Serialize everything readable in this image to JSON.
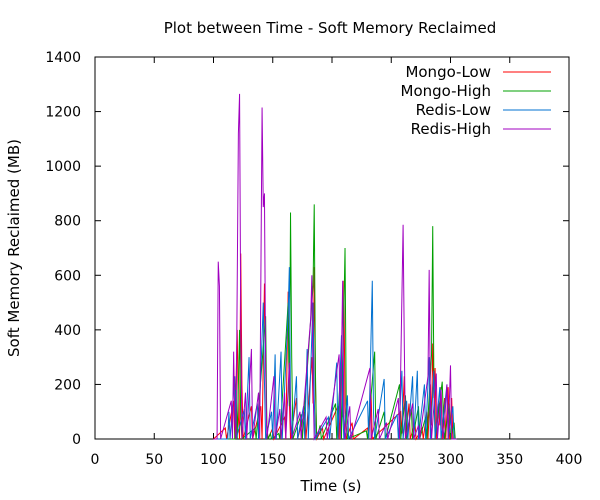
{
  "chart_data": {
    "type": "line",
    "title": "Plot between Time - Soft Memory Reclaimed",
    "xlabel": "Time (s)",
    "ylabel": "Soft Memory Reclaimed (MB)",
    "xlim": [
      0,
      400
    ],
    "ylim": [
      0,
      1400
    ],
    "xticks": [
      0,
      50,
      100,
      150,
      200,
      250,
      300,
      350,
      400
    ],
    "yticks": [
      0,
      200,
      400,
      600,
      800,
      1000,
      1200,
      1400
    ],
    "grid": false,
    "legend_position": "top-right",
    "series": [
      {
        "name": "Mongo-Low",
        "color": "#ff0000",
        "points": [
          [
            100,
            0
          ],
          [
            110,
            40
          ],
          [
            111,
            0
          ],
          [
            117,
            140
          ],
          [
            118,
            0
          ],
          [
            120,
            400
          ],
          [
            121,
            80
          ],
          [
            122,
            0
          ],
          [
            123,
            680
          ],
          [
            124,
            200
          ],
          [
            125,
            0
          ],
          [
            132,
            120
          ],
          [
            133,
            0
          ],
          [
            140,
            120
          ],
          [
            141,
            0
          ],
          [
            143,
            570
          ],
          [
            144,
            300
          ],
          [
            145,
            50
          ],
          [
            146,
            0
          ],
          [
            150,
            40
          ],
          [
            151,
            0
          ],
          [
            160,
            80
          ],
          [
            161,
            0
          ],
          [
            163,
            540
          ],
          [
            164,
            140
          ],
          [
            165,
            0
          ],
          [
            170,
            150
          ],
          [
            171,
            0
          ],
          [
            177,
            100
          ],
          [
            178,
            0
          ],
          [
            183,
            300
          ],
          [
            184,
            130
          ],
          [
            185,
            630
          ],
          [
            186,
            200
          ],
          [
            187,
            0
          ],
          [
            192,
            40
          ],
          [
            193,
            0
          ],
          [
            205,
            120
          ],
          [
            206,
            0
          ],
          [
            208,
            320
          ],
          [
            209,
            80
          ],
          [
            210,
            580
          ],
          [
            211,
            120
          ],
          [
            212,
            0
          ],
          [
            217,
            60
          ],
          [
            218,
            0
          ],
          [
            230,
            40
          ],
          [
            231,
            0
          ],
          [
            233,
            160
          ],
          [
            234,
            0
          ],
          [
            258,
            100
          ],
          [
            259,
            20
          ],
          [
            261,
            230
          ],
          [
            262,
            0
          ],
          [
            265,
            130
          ],
          [
            266,
            0
          ],
          [
            270,
            60
          ],
          [
            271,
            0
          ],
          [
            276,
            40
          ],
          [
            277,
            0
          ],
          [
            280,
            100
          ],
          [
            281,
            0
          ],
          [
            283,
            200
          ],
          [
            284,
            50
          ],
          [
            285,
            350
          ],
          [
            286,
            150
          ],
          [
            287,
            260
          ],
          [
            288,
            0
          ],
          [
            290,
            130
          ],
          [
            291,
            50
          ],
          [
            292,
            190
          ],
          [
            293,
            0
          ],
          [
            295,
            150
          ],
          [
            296,
            0
          ],
          [
            298,
            190
          ],
          [
            299,
            0
          ],
          [
            301,
            150
          ],
          [
            302,
            0
          ],
          [
            305,
            0
          ]
        ]
      },
      {
        "name": "Mongo-High",
        "color": "#00a000",
        "points": [
          [
            100,
            0
          ],
          [
            118,
            0
          ],
          [
            119,
            180
          ],
          [
            120,
            0
          ],
          [
            122,
            400
          ],
          [
            123,
            80
          ],
          [
            124,
            0
          ],
          [
            135,
            40
          ],
          [
            136,
            0
          ],
          [
            144,
            450
          ],
          [
            145,
            50
          ],
          [
            146,
            0
          ],
          [
            148,
            20
          ],
          [
            149,
            0
          ],
          [
            155,
            20
          ],
          [
            156,
            0
          ],
          [
            163,
            500
          ],
          [
            164,
            120
          ],
          [
            165,
            830
          ],
          [
            166,
            300
          ],
          [
            167,
            0
          ],
          [
            174,
            90
          ],
          [
            175,
            0
          ],
          [
            184,
            560
          ],
          [
            185,
            860
          ],
          [
            186,
            250
          ],
          [
            187,
            0
          ],
          [
            190,
            50
          ],
          [
            191,
            0
          ],
          [
            203,
            130
          ],
          [
            204,
            0
          ],
          [
            207,
            230
          ],
          [
            208,
            0
          ],
          [
            211,
            700
          ],
          [
            212,
            130
          ],
          [
            213,
            0
          ],
          [
            229,
            30
          ],
          [
            230,
            0
          ],
          [
            236,
            320
          ],
          [
            237,
            0
          ],
          [
            244,
            100
          ],
          [
            245,
            0
          ],
          [
            257,
            200
          ],
          [
            258,
            0
          ],
          [
            262,
            160
          ],
          [
            263,
            0
          ],
          [
            267,
            110
          ],
          [
            268,
            0
          ],
          [
            273,
            120
          ],
          [
            274,
            0
          ],
          [
            279,
            80
          ],
          [
            280,
            0
          ],
          [
            284,
            310
          ],
          [
            285,
            780
          ],
          [
            286,
            200
          ],
          [
            287,
            0
          ],
          [
            293,
            210
          ],
          [
            294,
            80
          ],
          [
            295,
            0
          ],
          [
            299,
            130
          ],
          [
            300,
            0
          ],
          [
            303,
            60
          ],
          [
            304,
            0
          ],
          [
            305,
            0
          ]
        ]
      },
      {
        "name": "Redis-Low",
        "color": "#0070d0",
        "points": [
          [
            100,
            0
          ],
          [
            112,
            0
          ],
          [
            113,
            100
          ],
          [
            114,
            0
          ],
          [
            118,
            230
          ],
          [
            119,
            0
          ],
          [
            126,
            110
          ],
          [
            127,
            0
          ],
          [
            130,
            300
          ],
          [
            131,
            0
          ],
          [
            137,
            130
          ],
          [
            138,
            0
          ],
          [
            142,
            500
          ],
          [
            143,
            210
          ],
          [
            144,
            0
          ],
          [
            149,
            100
          ],
          [
            150,
            0
          ],
          [
            152,
            310
          ],
          [
            153,
            0
          ],
          [
            157,
            320
          ],
          [
            158,
            0
          ],
          [
            163,
            460
          ],
          [
            164,
            630
          ],
          [
            165,
            130
          ],
          [
            166,
            0
          ],
          [
            170,
            230
          ],
          [
            171,
            0
          ],
          [
            176,
            120
          ],
          [
            177,
            0
          ],
          [
            179,
            330
          ],
          [
            180,
            0
          ],
          [
            183,
            380
          ],
          [
            184,
            500
          ],
          [
            185,
            150
          ],
          [
            186,
            0
          ],
          [
            197,
            80
          ],
          [
            198,
            0
          ],
          [
            204,
            280
          ],
          [
            205,
            0
          ],
          [
            208,
            380
          ],
          [
            209,
            120
          ],
          [
            210,
            0
          ],
          [
            213,
            160
          ],
          [
            214,
            0
          ],
          [
            230,
            140
          ],
          [
            231,
            0
          ],
          [
            234,
            580
          ],
          [
            235,
            100
          ],
          [
            236,
            0
          ],
          [
            244,
            220
          ],
          [
            245,
            0
          ],
          [
            255,
            90
          ],
          [
            256,
            0
          ],
          [
            259,
            250
          ],
          [
            260,
            0
          ],
          [
            263,
            140
          ],
          [
            264,
            0
          ],
          [
            268,
            230
          ],
          [
            269,
            0
          ],
          [
            272,
            250
          ],
          [
            273,
            0
          ],
          [
            278,
            200
          ],
          [
            279,
            0
          ],
          [
            282,
            300
          ],
          [
            283,
            0
          ],
          [
            286,
            250
          ],
          [
            287,
            0
          ],
          [
            291,
            190
          ],
          [
            292,
            0
          ],
          [
            297,
            200
          ],
          [
            298,
            0
          ],
          [
            302,
            120
          ],
          [
            303,
            0
          ],
          [
            305,
            0
          ]
        ]
      },
      {
        "name": "Redis-High",
        "color": "#a000c0",
        "points": [
          [
            100,
            0
          ],
          [
            103,
            0
          ],
          [
            104,
            650
          ],
          [
            105,
            560
          ],
          [
            106,
            0
          ],
          [
            115,
            140
          ],
          [
            116,
            0
          ],
          [
            117,
            320
          ],
          [
            118,
            60
          ],
          [
            119,
            0
          ],
          [
            121,
            1120
          ],
          [
            122,
            1265
          ],
          [
            123,
            430
          ],
          [
            124,
            0
          ],
          [
            127,
            170
          ],
          [
            128,
            0
          ],
          [
            132,
            330
          ],
          [
            133,
            0
          ],
          [
            138,
            170
          ],
          [
            139,
            0
          ],
          [
            141,
            1215
          ],
          [
            142,
            850
          ],
          [
            143,
            900
          ],
          [
            144,
            260
          ],
          [
            145,
            0
          ],
          [
            151,
            230
          ],
          [
            152,
            0
          ],
          [
            156,
            110
          ],
          [
            157,
            0
          ],
          [
            160,
            170
          ],
          [
            161,
            0
          ],
          [
            164,
            280
          ],
          [
            165,
            60
          ],
          [
            166,
            0
          ],
          [
            173,
            100
          ],
          [
            174,
            0
          ],
          [
            182,
            440
          ],
          [
            183,
            600
          ],
          [
            184,
            200
          ],
          [
            185,
            0
          ],
          [
            195,
            80
          ],
          [
            196,
            0
          ],
          [
            206,
            310
          ],
          [
            207,
            0
          ],
          [
            209,
            580
          ],
          [
            210,
            90
          ],
          [
            211,
            0
          ],
          [
            215,
            120
          ],
          [
            216,
            0
          ],
          [
            232,
            260
          ],
          [
            233,
            0
          ],
          [
            239,
            110
          ],
          [
            240,
            0
          ],
          [
            246,
            60
          ],
          [
            247,
            0
          ],
          [
            256,
            150
          ],
          [
            257,
            0
          ],
          [
            260,
            785
          ],
          [
            261,
            350
          ],
          [
            262,
            0
          ],
          [
            268,
            130
          ],
          [
            269,
            0
          ],
          [
            273,
            50
          ],
          [
            274,
            0
          ],
          [
            281,
            230
          ],
          [
            282,
            620
          ],
          [
            283,
            140
          ],
          [
            284,
            0
          ],
          [
            288,
            240
          ],
          [
            289,
            0
          ],
          [
            292,
            180
          ],
          [
            293,
            50
          ],
          [
            294,
            0
          ],
          [
            297,
            200
          ],
          [
            298,
            0
          ],
          [
            300,
            270
          ],
          [
            301,
            0
          ],
          [
            305,
            0
          ]
        ]
      }
    ]
  }
}
